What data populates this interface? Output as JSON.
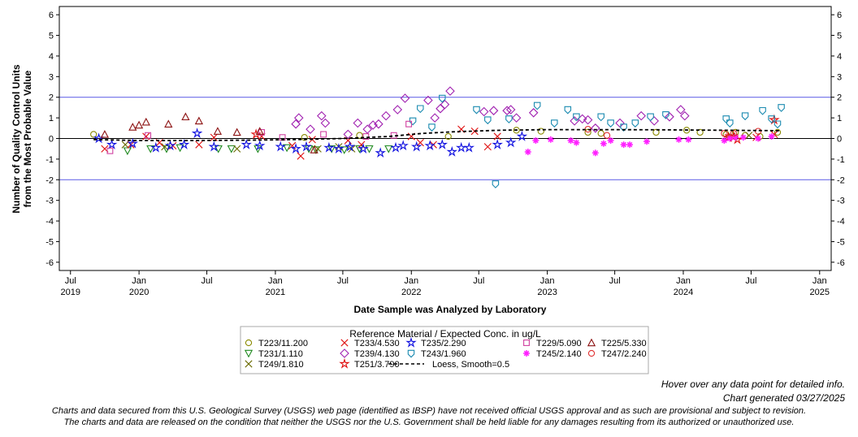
{
  "chart_data": {
    "type": "scatter",
    "ylabel_line1": "Number of Quality Control Units",
    "ylabel_line2": "from the Most Probable Value",
    "xlabel": "Date Sample was Analyzed by Laboratory",
    "ylim": [
      -6.4,
      6.4
    ],
    "xlim": [
      "2019-06-01",
      "2025-02-01"
    ],
    "yticks": [
      -6,
      -5,
      -4,
      -3,
      -2,
      -1,
      0,
      1,
      2,
      3,
      4,
      5,
      6
    ],
    "xticks": [
      {
        "date": "2019-07-01",
        "label": "Jul",
        "year": "2019"
      },
      {
        "date": "2020-01-01",
        "label": "Jan",
        "year": "2020"
      },
      {
        "date": "2020-07-01",
        "label": "Jul",
        "year": ""
      },
      {
        "date": "2021-01-01",
        "label": "Jan",
        "year": "2021"
      },
      {
        "date": "2021-07-01",
        "label": "Jul",
        "year": ""
      },
      {
        "date": "2022-01-01",
        "label": "Jan",
        "year": "2022"
      },
      {
        "date": "2022-07-01",
        "label": "Jul",
        "year": ""
      },
      {
        "date": "2023-01-01",
        "label": "Jan",
        "year": "2023"
      },
      {
        "date": "2023-07-01",
        "label": "Jul",
        "year": ""
      },
      {
        "date": "2024-01-01",
        "label": "Jan",
        "year": "2024"
      },
      {
        "date": "2024-07-01",
        "label": "Jul",
        "year": ""
      },
      {
        "date": "2025-01-01",
        "label": "Jan",
        "year": "2025"
      }
    ],
    "reference_lines": [
      -2,
      2
    ],
    "reference_line_color": "#5a5ae6",
    "zero_line": 0,
    "legend_title": "Reference Material / Expected Conc. in ug/L",
    "legend_placement": "bottom-center",
    "series": [
      {
        "name": "T223/11.200",
        "marker": "circle",
        "color": "#8a8a00",
        "x": [
          "2019-09-01",
          "2021-03-20",
          "2021-08-15",
          "2022-04-10",
          "2022-10-10",
          "2022-12-15",
          "2023-04-20",
          "2023-05-25",
          "2023-10-20",
          "2024-01-10",
          "2024-02-15",
          "2024-04-25",
          "2024-05-20",
          "2024-06-15",
          "2024-07-25",
          "2024-09-10"
        ],
        "y": [
          0.2,
          0.05,
          0.15,
          0.1,
          0.4,
          0.35,
          0.3,
          0.25,
          0.3,
          0.4,
          0.3,
          0.2,
          0.3,
          0.15,
          0.1,
          0.3
        ]
      },
      {
        "name": "T231/1.110",
        "marker": "triangle-down",
        "color": "#208a20",
        "x": [
          "2019-12-01",
          "2020-02-01",
          "2020-03-15",
          "2020-04-20",
          "2020-08-01",
          "2020-09-05",
          "2020-11-15",
          "2021-02-01",
          "2021-04-01",
          "2021-04-20",
          "2021-06-01",
          "2021-07-05",
          "2021-08-15",
          "2021-09-10",
          "2021-11-01"
        ],
        "y": [
          -0.6,
          -0.5,
          -0.5,
          -0.45,
          -0.5,
          -0.5,
          -0.5,
          -0.45,
          -0.5,
          -0.55,
          -0.5,
          -0.55,
          -0.5,
          -0.5,
          -0.5
        ]
      },
      {
        "name": "T249/1.810",
        "marker": "x",
        "color": "#6b6b00",
        "x": [
          "2019-11-25",
          "2020-03-10",
          "2020-09-20",
          "2021-04-25",
          "2021-06-20",
          "2021-07-25",
          "2024-05-10",
          "2024-06-25"
        ],
        "y": [
          -0.3,
          -0.4,
          -0.5,
          -0.5,
          -0.4,
          -0.5,
          0.1,
          0.15
        ]
      },
      {
        "name": "T233/4.530",
        "marker": "x",
        "color": "#e01010",
        "x": [
          "2019-10-01",
          "2019-12-10",
          "2020-01-20",
          "2020-02-25",
          "2020-04-01",
          "2020-06-10",
          "2020-07-20",
          "2020-11-25",
          "2021-02-15",
          "2021-03-10",
          "2021-04-10",
          "2021-07-15",
          "2021-08-20",
          "2022-01-01",
          "2022-01-25",
          "2022-03-01",
          "2022-05-15",
          "2022-06-20",
          "2022-07-25",
          "2022-08-20",
          "2024-05-01",
          "2024-07-15",
          "2024-09-01"
        ],
        "y": [
          -0.5,
          -0.3,
          0.1,
          -0.2,
          -0.35,
          -0.3,
          0.05,
          0.1,
          -0.35,
          -0.85,
          -0.05,
          -0.1,
          -0.3,
          0.1,
          -0.2,
          -0.3,
          0.45,
          0.35,
          -0.4,
          0.1,
          0.05,
          0.05,
          0.2
        ]
      },
      {
        "name": "T239/4.130",
        "marker": "diamond",
        "color": "#a020b0",
        "x": [
          "2021-02-25",
          "2021-03-05",
          "2021-04-05",
          "2021-05-05",
          "2021-05-15",
          "2021-07-15",
          "2021-08-10",
          "2021-09-05",
          "2021-09-20",
          "2021-10-05",
          "2021-10-25",
          "2021-11-25",
          "2021-12-15",
          "2022-02-15",
          "2022-03-05",
          "2022-03-20",
          "2022-04-01",
          "2022-04-15",
          "2022-07-15",
          "2022-08-10",
          "2022-09-15",
          "2022-09-25",
          "2022-10-10",
          "2022-11-25",
          "2023-03-15",
          "2023-04-05",
          "2023-04-20",
          "2023-05-10",
          "2023-07-15",
          "2023-09-10",
          "2023-10-15",
          "2023-11-25",
          "2023-12-25",
          "2024-01-05"
        ],
        "y": [
          0.7,
          1.0,
          0.45,
          1.1,
          0.75,
          0.2,
          0.75,
          0.45,
          0.65,
          0.7,
          1.1,
          1.4,
          1.95,
          1.85,
          1.0,
          1.45,
          1.65,
          2.3,
          1.3,
          1.35,
          1.35,
          1.4,
          1.0,
          1.25,
          0.85,
          0.95,
          0.9,
          0.5,
          0.75,
          1.1,
          0.85,
          1.05,
          1.4,
          1.1
        ]
      },
      {
        "name": "T251/3.790",
        "marker": "star",
        "color": "#e01010",
        "x": [
          "2020-11-10",
          "2024-05-01",
          "2024-05-15",
          "2024-05-25",
          "2024-09-01"
        ],
        "y": [
          0.2,
          0.05,
          0.1,
          -0.05,
          0.9
        ]
      },
      {
        "name": "T235/2.290",
        "marker": "star",
        "color": "#1010e0",
        "x": [
          "2019-09-15",
          "2019-10-20",
          "2019-12-15",
          "2020-02-15",
          "2020-03-25",
          "2020-05-01",
          "2020-06-05",
          "2020-07-20",
          "2020-10-15",
          "2020-11-20",
          "2021-01-15",
          "2021-02-25",
          "2021-03-25",
          "2021-05-25",
          "2021-06-20",
          "2021-07-20",
          "2021-08-25",
          "2021-10-10",
          "2021-11-20",
          "2021-12-10",
          "2022-01-15",
          "2022-02-20",
          "2022-03-25",
          "2022-04-20",
          "2022-05-15",
          "2022-06-05",
          "2022-08-20",
          "2022-09-25",
          "2022-10-25"
        ],
        "y": [
          0.0,
          -0.3,
          -0.25,
          -0.45,
          -0.35,
          -0.3,
          0.25,
          -0.4,
          -0.3,
          -0.35,
          -0.4,
          -0.5,
          -0.4,
          -0.45,
          -0.5,
          -0.4,
          -0.5,
          -0.7,
          -0.45,
          -0.35,
          -0.4,
          -0.35,
          -0.3,
          -0.65,
          -0.45,
          -0.45,
          -0.3,
          -0.2,
          0.1
        ]
      },
      {
        "name": "T243/1.960",
        "marker": "shield",
        "color": "#1a8ab0",
        "x": [
          "2022-01-05",
          "2022-01-25",
          "2022-02-25",
          "2022-03-25",
          "2022-06-25",
          "2022-07-25",
          "2022-08-15",
          "2022-09-20",
          "2022-12-05",
          "2023-01-20",
          "2023-02-25",
          "2023-03-20",
          "2023-05-25",
          "2023-06-20",
          "2023-07-25",
          "2023-08-25",
          "2023-10-05",
          "2023-11-15",
          "2024-04-25",
          "2024-05-05",
          "2024-06-15",
          "2024-08-01",
          "2024-08-25",
          "2024-09-10",
          "2024-09-20"
        ],
        "y": [
          0.85,
          1.45,
          0.55,
          1.95,
          1.4,
          0.9,
          -2.2,
          0.95,
          1.6,
          0.75,
          1.4,
          1.05,
          1.05,
          0.75,
          0.55,
          0.75,
          1.05,
          1.15,
          0.95,
          0.75,
          1.1,
          1.35,
          0.95,
          0.7,
          1.5
        ]
      },
      {
        "name": "T229/5.090",
        "marker": "square",
        "color": "#d040a0",
        "x": [
          "2019-10-15",
          "2020-01-25",
          "2020-11-25",
          "2021-01-20",
          "2021-05-10",
          "2021-09-01",
          "2021-11-15",
          "2021-12-25"
        ],
        "y": [
          -0.6,
          0.15,
          0.3,
          0.05,
          0.2,
          0.1,
          0.15,
          0.7
        ]
      },
      {
        "name": "T245/2.140",
        "marker": "asterisk",
        "color": "#ff20ff",
        "x": [
          "2022-11-10",
          "2022-12-01",
          "2023-01-10",
          "2023-03-05",
          "2023-03-20",
          "2023-05-10",
          "2023-06-01",
          "2023-06-20",
          "2023-07-25",
          "2023-08-10",
          "2023-09-25",
          "2023-12-20",
          "2024-01-15",
          "2024-04-20",
          "2024-05-05",
          "2024-05-20",
          "2024-06-10",
          "2024-07-20",
          "2024-08-25"
        ],
        "y": [
          -0.65,
          -0.1,
          -0.05,
          -0.1,
          -0.2,
          -0.7,
          -0.25,
          -0.1,
          -0.3,
          -0.3,
          -0.15,
          -0.05,
          -0.05,
          -0.1,
          0.0,
          0.05,
          0.05,
          0.0,
          0.1
        ]
      },
      {
        "name": "T225/5.330",
        "marker": "triangle",
        "color": "#8b1010",
        "x": [
          "2019-10-01",
          "2019-12-15",
          "2020-01-01",
          "2020-01-20",
          "2020-03-20",
          "2020-05-05",
          "2020-06-10",
          "2020-07-30",
          "2020-09-20",
          "2020-11-20",
          "2021-04-15"
        ],
        "y": [
          0.2,
          0.55,
          0.65,
          0.8,
          0.7,
          1.05,
          0.85,
          0.35,
          0.3,
          0.35,
          -0.55
        ]
      },
      {
        "name": "T247/2.240",
        "marker": "circle",
        "color": "#e03030",
        "x": [
          "2023-04-20",
          "2023-06-10",
          "2024-04-20",
          "2024-05-15",
          "2024-07-20"
        ],
        "y": [
          0.45,
          0.15,
          0.25,
          0.25,
          0.35
        ]
      }
    ],
    "loess": {
      "name": "Loess, Smooth=0.5",
      "x": [
        "2019-09-01",
        "2020-01-01",
        "2020-06-01",
        "2020-11-01",
        "2021-03-01",
        "2021-07-01",
        "2021-11-01",
        "2022-02-01",
        "2022-05-01",
        "2022-09-01",
        "2023-01-01",
        "2023-06-01",
        "2023-11-01",
        "2024-04-01",
        "2024-09-15"
      ],
      "y": [
        -0.05,
        -0.1,
        -0.1,
        -0.08,
        -0.05,
        0.0,
        0.1,
        0.25,
        0.33,
        0.4,
        0.43,
        0.43,
        0.42,
        0.4,
        0.38
      ]
    }
  },
  "notes": {
    "hover": "Hover over any data point for detailed info.",
    "generated": "Chart generated 03/27/2025",
    "disclaimer1": "Charts and data secured from this U.S. Geological Survey (USGS) web page (identified as IBSP) have not received official USGS approval and as such are provisional and subject to revision.",
    "disclaimer2": "The charts and data are released on the condition that neither the USGS nor the U.S. Government shall be held liable for any damages resulting from its authorized or unauthorized use."
  }
}
